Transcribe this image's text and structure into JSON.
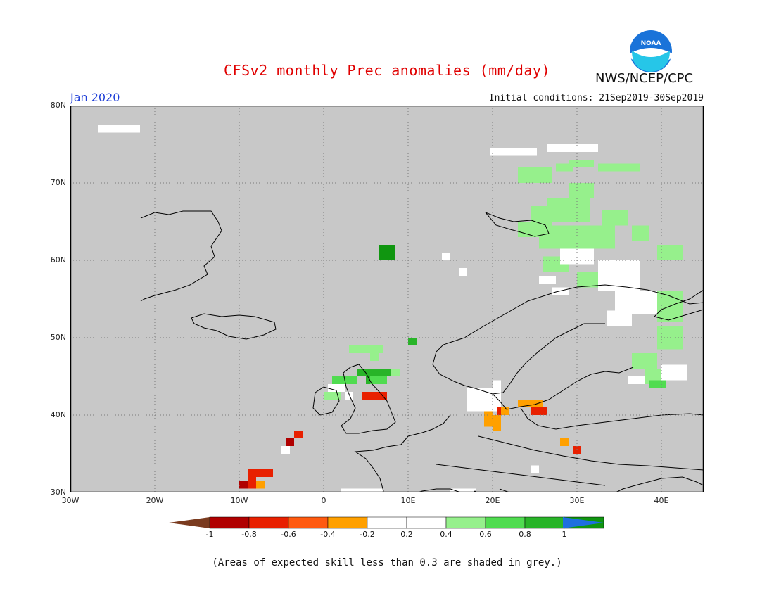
{
  "header": {
    "title": "CFSv2 monthly Prec anomalies (mm/day)",
    "agency": "NWS/NCEP/CPC",
    "month": "Jan 2020",
    "initial_conditions": "Initial conditions: 21Sep2019-30Sep2019",
    "logo_text": "NOAA"
  },
  "map": {
    "lon_range": [
      -30,
      45
    ],
    "lat_range": [
      30,
      80
    ],
    "background_color": "#c8c8c8",
    "lat_labels": [
      "80N",
      "70N",
      "60N",
      "50N",
      "40N",
      "30N"
    ],
    "lon_labels": [
      "30W",
      "20W",
      "10W",
      "0",
      "10E",
      "20E",
      "30E",
      "40E"
    ],
    "anomaly_cells": [
      {
        "lon": -25.5,
        "lat": 77.0,
        "w": 2.5,
        "h": 1.0,
        "cat": "white"
      },
      {
        "lon": -23.0,
        "lat": 77.0,
        "w": 2.5,
        "h": 1.0,
        "cat": "white"
      },
      {
        "lon": -4.5,
        "lat": 35.5,
        "w": 1,
        "h": 1,
        "cat": "white"
      },
      {
        "lon": 14.5,
        "lat": 60.5,
        "w": 1,
        "h": 1,
        "cat": "white"
      },
      {
        "lon": 16.5,
        "lat": 58.5,
        "w": 1,
        "h": 1,
        "cat": "white"
      },
      {
        "lon": 22.5,
        "lat": 74.0,
        "w": 5.5,
        "h": 1,
        "cat": "white"
      },
      {
        "lon": 29.5,
        "lat": 74.5,
        "w": 6,
        "h": 1,
        "cat": "white"
      },
      {
        "lon": 25.0,
        "lat": 71.0,
        "w": 4,
        "h": 2,
        "cat": "g02"
      },
      {
        "lon": 28.5,
        "lat": 72.0,
        "w": 2,
        "h": 1,
        "cat": "g02"
      },
      {
        "lon": 30.5,
        "lat": 72.5,
        "w": 3,
        "h": 1,
        "cat": "g02"
      },
      {
        "lon": 33.5,
        "lat": 72.0,
        "w": 2,
        "h": 1,
        "cat": "g02"
      },
      {
        "lon": 35.5,
        "lat": 72.0,
        "w": 4,
        "h": 1,
        "cat": "g02"
      },
      {
        "lon": 30.5,
        "lat": 69.0,
        "w": 3,
        "h": 2,
        "cat": "g02"
      },
      {
        "lon": 26.5,
        "lat": 66.0,
        "w": 4,
        "h": 2,
        "cat": "g02"
      },
      {
        "lon": 25.0,
        "lat": 64.0,
        "w": 4,
        "h": 2,
        "cat": "g02"
      },
      {
        "lon": 29.0,
        "lat": 66.5,
        "w": 5,
        "h": 3,
        "cat": "g02"
      },
      {
        "lon": 30.0,
        "lat": 63.0,
        "w": 9,
        "h": 3,
        "cat": "g02"
      },
      {
        "lon": 34.5,
        "lat": 65.5,
        "w": 3,
        "h": 2,
        "cat": "g02"
      },
      {
        "lon": 37.5,
        "lat": 63.5,
        "w": 2,
        "h": 2,
        "cat": "g02"
      },
      {
        "lon": 41.0,
        "lat": 61.0,
        "w": 3,
        "h": 2,
        "cat": "g02"
      },
      {
        "lon": 27.5,
        "lat": 59.5,
        "w": 3,
        "h": 2,
        "cat": "g02"
      },
      {
        "lon": 32.0,
        "lat": 57.5,
        "w": 4,
        "h": 2,
        "cat": "g02"
      },
      {
        "lon": 30.0,
        "lat": 60.5,
        "w": 4,
        "h": 2,
        "cat": "white"
      },
      {
        "lon": 35.0,
        "lat": 58.0,
        "w": 5,
        "h": 4,
        "cat": "white"
      },
      {
        "lon": 37.0,
        "lat": 54.5,
        "w": 5,
        "h": 3,
        "cat": "white"
      },
      {
        "lon": 35.0,
        "lat": 52.5,
        "w": 3,
        "h": 2,
        "cat": "white"
      },
      {
        "lon": 26.5,
        "lat": 57.5,
        "w": 2,
        "h": 1,
        "cat": "white"
      },
      {
        "lon": 28.0,
        "lat": 56.0,
        "w": 2,
        "h": 1,
        "cat": "white"
      },
      {
        "lon": 41.0,
        "lat": 54.0,
        "w": 3,
        "h": 4,
        "cat": "g02"
      },
      {
        "lon": 41.0,
        "lat": 50.0,
        "w": 3,
        "h": 3,
        "cat": "g02"
      },
      {
        "lon": 38.0,
        "lat": 47.0,
        "w": 3,
        "h": 2,
        "cat": "g02"
      },
      {
        "lon": 39.0,
        "lat": 45.0,
        "w": 2,
        "h": 2,
        "cat": "g02"
      },
      {
        "lon": 41.5,
        "lat": 45.5,
        "w": 3,
        "h": 2,
        "cat": "white"
      },
      {
        "lon": 37.0,
        "lat": 44.5,
        "w": 2,
        "h": 1,
        "cat": "white"
      },
      {
        "lon": 39.5,
        "lat": 44.0,
        "w": 2,
        "h": 1,
        "cat": "g04"
      },
      {
        "lon": 25.0,
        "lat": 33.0,
        "w": 1,
        "h": 1,
        "cat": "white"
      },
      {
        "lon": 5.0,
        "lat": 48.5,
        "w": 4,
        "h": 1,
        "cat": "g02"
      },
      {
        "lon": 6.0,
        "lat": 47.5,
        "w": 1,
        "h": 1,
        "cat": "g02"
      },
      {
        "lon": 10.5,
        "lat": 49.5,
        "w": 1,
        "h": 1,
        "cat": "g06"
      },
      {
        "lon": 6.0,
        "lat": 45.5,
        "w": 4,
        "h": 1,
        "cat": "g06"
      },
      {
        "lon": 2.5,
        "lat": 44.5,
        "w": 3,
        "h": 1,
        "cat": "g04"
      },
      {
        "lon": 5.5,
        "lat": 44.5,
        "w": 1,
        "h": 1,
        "cat": "g06"
      },
      {
        "lon": 6.5,
        "lat": 44.5,
        "w": 2,
        "h": 1,
        "cat": "g04"
      },
      {
        "lon": 8.5,
        "lat": 45.5,
        "w": 1,
        "h": 1,
        "cat": "g02"
      },
      {
        "lon": 1.5,
        "lat": 43.5,
        "w": 2,
        "h": 1,
        "cat": "white"
      },
      {
        "lon": 1.0,
        "lat": 42.5,
        "w": 2,
        "h": 1,
        "cat": "g02"
      },
      {
        "lon": 3.0,
        "lat": 42.5,
        "w": 1,
        "h": 1,
        "cat": "white"
      },
      {
        "lon": 5.0,
        "lat": 42.5,
        "w": 1,
        "h": 1,
        "cat": "o04"
      },
      {
        "lon": 6.0,
        "lat": 42.5,
        "w": 3,
        "h": 1,
        "cat": "r06"
      },
      {
        "lon": 7.5,
        "lat": 61.0,
        "w": 2,
        "h": 2,
        "cat": "g08"
      },
      {
        "lon": 19.0,
        "lat": 42.0,
        "w": 4,
        "h": 3,
        "cat": "white"
      },
      {
        "lon": 20.5,
        "lat": 44.0,
        "w": 1,
        "h": 1,
        "cat": "white"
      },
      {
        "lon": 19.5,
        "lat": 42.5,
        "w": 1,
        "h": 1,
        "cat": "white"
      },
      {
        "lon": 19.5,
        "lat": 39.5,
        "w": 1,
        "h": 2,
        "cat": "o04"
      },
      {
        "lon": 20.5,
        "lat": 39.0,
        "w": 1,
        "h": 2,
        "cat": "o04"
      },
      {
        "lon": 21.0,
        "lat": 40.5,
        "w": 1,
        "h": 1,
        "cat": "r06"
      },
      {
        "lon": 21.5,
        "lat": 40.5,
        "w": 1,
        "h": 1,
        "cat": "o04"
      },
      {
        "lon": 24.5,
        "lat": 41.5,
        "w": 3,
        "h": 1,
        "cat": "o04"
      },
      {
        "lon": 25.5,
        "lat": 40.5,
        "w": 2,
        "h": 1,
        "cat": "r06"
      },
      {
        "lon": 28.5,
        "lat": 36.5,
        "w": 1,
        "h": 1,
        "cat": "o04"
      },
      {
        "lon": 30.0,
        "lat": 35.5,
        "w": 1,
        "h": 1,
        "cat": "r06"
      },
      {
        "lon": -3.0,
        "lat": 37.5,
        "w": 1,
        "h": 1,
        "cat": "r06"
      },
      {
        "lon": -4.0,
        "lat": 36.5,
        "w": 1,
        "h": 1,
        "cat": "r08"
      },
      {
        "lon": -7.5,
        "lat": 32.5,
        "w": 3,
        "h": 1,
        "cat": "r06"
      },
      {
        "lon": -8.5,
        "lat": 31.5,
        "w": 1,
        "h": 1,
        "cat": "r06"
      },
      {
        "lon": -9.5,
        "lat": 31.0,
        "w": 1,
        "h": 1,
        "cat": "r08"
      },
      {
        "lon": -7.5,
        "lat": 31.0,
        "w": 1,
        "h": 1,
        "cat": "o04"
      },
      {
        "lon": -8.5,
        "lat": 31.0,
        "w": 1,
        "h": 1,
        "cat": "r06"
      },
      {
        "lon": 4.5,
        "lat": 30.0,
        "w": 5,
        "h": 1,
        "cat": "white"
      },
      {
        "lon": 16.5,
        "lat": 30.0,
        "w": 3,
        "h": 1,
        "cat": "white"
      }
    ]
  },
  "colorbar": {
    "colors": {
      "lt_m1": "#7a3b1f",
      "r08": "#b00000",
      "r06": "#e82000",
      "r04": "#ff5a10",
      "o04": "#ffa000",
      "white": "#ffffff",
      "g02": "#96f08c",
      "g04": "#50dc50",
      "g06": "#28b428",
      "g08": "#109610",
      "gt_p1": "#1e6fe0"
    },
    "bins": [
      "r08",
      "r06",
      "r04",
      "o04",
      "white",
      "white",
      "g02",
      "g04",
      "g06",
      "g08"
    ],
    "labels": [
      "-1",
      "-0.8",
      "-0.6",
      "-0.4",
      "-0.2",
      "0.2",
      "0.4",
      "0.6",
      "0.8",
      "1"
    ]
  },
  "footnote": "(Areas of expected skill less than 0.3 are shaded in grey.)"
}
